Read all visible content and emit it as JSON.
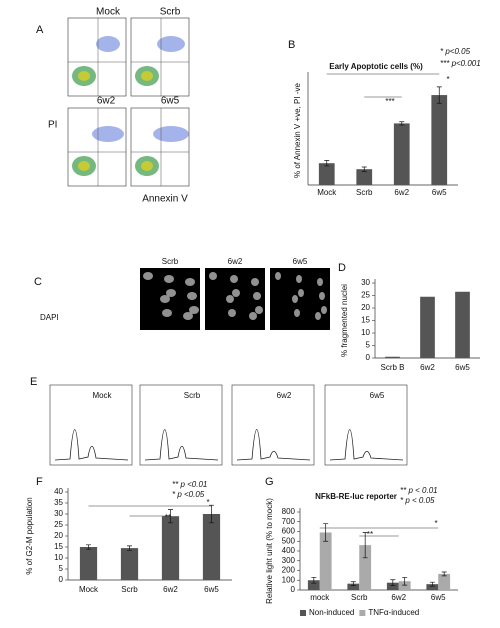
{
  "figure": {
    "panel_a": {
      "letter": "A",
      "labels": [
        "Mock",
        "Scrb",
        "6w2",
        "6w5"
      ],
      "y_label": "PI",
      "x_label": "Annexin V"
    },
    "panel_c": {
      "letter": "C",
      "labels": [
        "Scrb",
        "6w2",
        "6w5"
      ],
      "stain": "DAPI"
    },
    "panel_e": {
      "letter": "E",
      "labels": [
        "Mock",
        "Scrb",
        "6w2",
        "6w5"
      ]
    }
  },
  "chart_data": [
    {
      "type": "bar",
      "letter": "B",
      "title": "Early Apoptotic cells (%)",
      "y_label": "% of Annexin V +ve, PI -ve",
      "categories": [
        "Mock",
        "Scrb",
        "6w2",
        "6w5"
      ],
      "series": [
        {
          "color": "#555555",
          "values": [
            4.0,
            2.9,
            11.3,
            16.5
          ],
          "errors": [
            0.5,
            0.4,
            0.3,
            1.5
          ]
        }
      ],
      "ylim": [
        0,
        20
      ],
      "annotations": [
        "* p<0.05",
        "*** p<0.001"
      ],
      "significance": [
        "***",
        "*"
      ]
    },
    {
      "type": "bar",
      "letter": "D",
      "y_label": "% fragmented nuclei",
      "categories": [
        "Scrb B",
        "6w2",
        "6w5"
      ],
      "series": [
        {
          "color": "#555555",
          "values": [
            0.5,
            24.5,
            26.5
          ]
        }
      ],
      "ylim": [
        0,
        30
      ],
      "yticks": [
        0,
        5,
        10,
        15,
        20,
        25,
        30
      ]
    },
    {
      "type": "bar",
      "letter": "F",
      "y_label": "% of G2-M population",
      "categories": [
        "Mock",
        "Scrb",
        "6w2",
        "6w5"
      ],
      "series": [
        {
          "color": "#555555",
          "values": [
            15,
            14.5,
            29,
            30
          ],
          "errors": [
            1,
            1,
            3,
            4
          ]
        }
      ],
      "ylim": [
        0,
        40
      ],
      "yticks": [
        0,
        5,
        10,
        15,
        20,
        25,
        30,
        35,
        40
      ],
      "annotations": [
        "** p <0.01",
        "* p <0.05"
      ],
      "significance": [
        "*",
        "**"
      ]
    },
    {
      "type": "bar",
      "letter": "G",
      "title": "NFkB-RE-luc reporter",
      "y_label": "Relative light unit (% to mock)",
      "categories": [
        "mock",
        "Scrb",
        "6w2",
        "6w5"
      ],
      "series": [
        {
          "name": "Non-induced",
          "color": "#555555",
          "values": [
            100,
            65,
            75,
            60
          ],
          "errors": [
            30,
            20,
            30,
            20
          ]
        },
        {
          "name": "TNFα-induced",
          "color": "#aaaaaa",
          "values": [
            590,
            460,
            90,
            165
          ],
          "errors": [
            90,
            130,
            40,
            20
          ]
        }
      ],
      "ylim": [
        0,
        800
      ],
      "yticks": [
        0,
        100,
        200,
        300,
        400,
        500,
        600,
        700,
        800
      ],
      "annotations": [
        "** p < 0.01",
        "* p < 0.05"
      ],
      "significance": [
        "*",
        "**"
      ],
      "legend": "bottom"
    }
  ]
}
